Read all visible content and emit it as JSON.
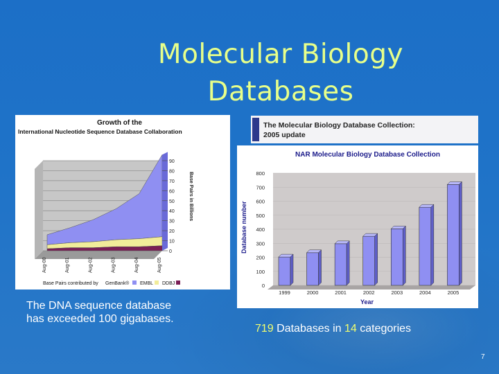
{
  "slide": {
    "title_line1": "Molecular Biology",
    "title_line2": "Databases",
    "page_number": "7"
  },
  "left_figure": {
    "title_line1": "Growth of the",
    "title_line2": "International Nucleotide Sequence Database Collaboration",
    "y_axis_title": "Base Pairs in Billions",
    "footer_label": "Base Pairs contributed by",
    "legend": [
      "GenBank®",
      "EMBL",
      "DDBJ"
    ],
    "caption_line1": "The DNA sequence database",
    "caption_line2": "has exceeded 100 gigabases."
  },
  "right_figure": {
    "header_line1": "The Molecular Biology Database Collection:",
    "header_line2": "2005 update",
    "caption_num": "719",
    "caption_mid": " Databases in ",
    "caption_cat": "14",
    "caption_end": " categories"
  },
  "colors": {
    "title": "#e7ff8a",
    "bar": "#8f8ff2",
    "highlight": "#f2ff6e"
  },
  "chart_data": [
    {
      "type": "area",
      "title": "Growth of the International Nucleotide Sequence Database Collaboration",
      "ylabel": "Base Pairs in Billions",
      "x": [
        "Aug-00",
        "Aug-01",
        "Aug-02",
        "Aug-03",
        "Aug-04",
        "Aug-05"
      ],
      "yticks": [
        0,
        10,
        20,
        30,
        40,
        50,
        60,
        70,
        80,
        90
      ],
      "ylim": [
        0,
        90
      ],
      "series": [
        {
          "name": "GenBank®",
          "values": [
            10,
            15,
            22,
            31,
            45,
            82
          ]
        },
        {
          "name": "EMBL",
          "values": [
            4,
            5,
            6,
            7,
            8,
            9
          ]
        },
        {
          "name": "DDBJ",
          "values": [
            2,
            3,
            3,
            4,
            4,
            5
          ]
        }
      ]
    },
    {
      "type": "bar",
      "title": "NAR Molecular Biology Database Collection",
      "xlabel": "Year",
      "ylabel": "Database number",
      "categories": [
        "1999",
        "2000",
        "2001",
        "2002",
        "2003",
        "2004",
        "2005"
      ],
      "values": [
        202,
        233,
        297,
        350,
        403,
        557,
        719
      ],
      "yticks": [
        0,
        100,
        200,
        300,
        400,
        500,
        600,
        700,
        800
      ],
      "ylim": [
        0,
        800
      ]
    }
  ]
}
